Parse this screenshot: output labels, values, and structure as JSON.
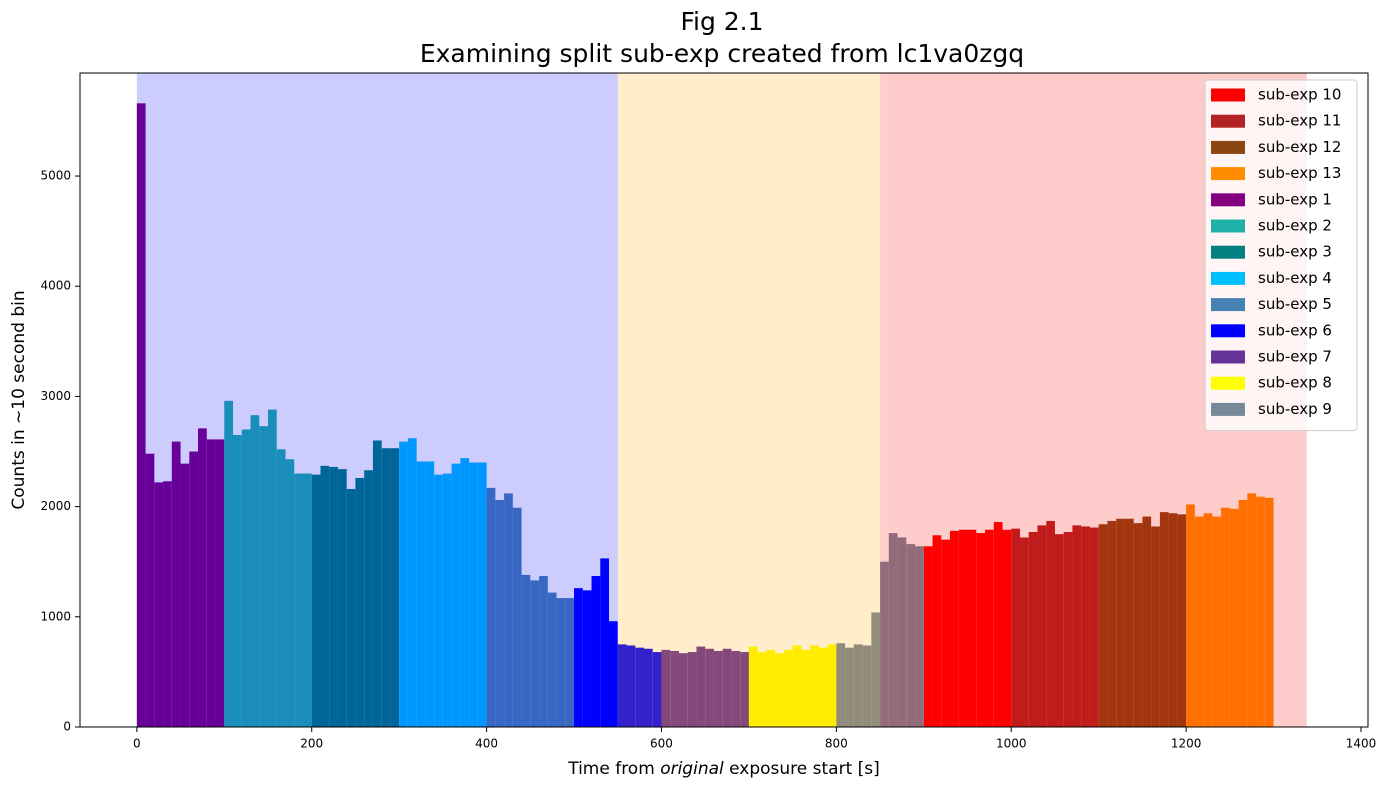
{
  "chart_data": {
    "type": "histogram",
    "title": "Fig 2.1",
    "subtitle": "Examining split sub-exp created from lc1va0zgq",
    "xlabel": [
      "Time from",
      "original",
      "exposure start [s]"
    ],
    "ylabel": "Counts in  ~10 second bin",
    "xlim": [
      -65,
      1408
    ],
    "ylim": [
      0,
      5935
    ],
    "xticks": [
      0,
      200,
      400,
      600,
      800,
      1000,
      1200,
      1400
    ],
    "yticks": [
      0,
      1000,
      2000,
      3000,
      4000,
      5000
    ],
    "legend": "upper right",
    "shaded_regions": [
      {
        "xlim": [
          0,
          550
        ],
        "color": "#0000ff"
      },
      {
        "xlim": [
          550,
          850
        ],
        "color": "#ffa500"
      },
      {
        "xlim": [
          850,
          1338
        ],
        "color": "#ff0000"
      }
    ],
    "series": [
      {
        "name": "sub-exp 10",
        "color": "#ff0000",
        "bins": [
          900,
          910,
          920,
          930,
          940,
          950,
          960,
          970,
          980,
          990,
          1000
        ],
        "values": [
          1640,
          1740,
          1700,
          1780,
          1790,
          1790,
          1760,
          1790,
          1860,
          1790
        ]
      },
      {
        "name": "sub-exp 11",
        "color": "#b22222",
        "bins": [
          1000,
          1010,
          1020,
          1030,
          1040,
          1050,
          1060,
          1070,
          1080,
          1090,
          1100
        ],
        "values": [
          1800,
          1720,
          1770,
          1830,
          1870,
          1750,
          1770,
          1830,
          1820,
          1810
        ]
      },
      {
        "name": "sub-exp 12",
        "color": "#8b4513",
        "bins": [
          1100,
          1110,
          1120,
          1130,
          1140,
          1150,
          1160,
          1170,
          1180,
          1190,
          1200
        ],
        "values": [
          1840,
          1870,
          1890,
          1890,
          1850,
          1910,
          1820,
          1950,
          1940,
          1930
        ]
      },
      {
        "name": "sub-exp 13",
        "color": "#ff8c00",
        "bins": [
          1200,
          1210,
          1220,
          1230,
          1240,
          1250,
          1260,
          1270,
          1280,
          1290,
          1300
        ],
        "values": [
          2020,
          1910,
          1940,
          1910,
          1990,
          1980,
          2060,
          2120,
          2090,
          2080
        ]
      },
      {
        "name": "sub-exp 1",
        "color": "#800080",
        "bins": [
          0,
          10,
          20,
          30,
          40,
          50,
          60,
          70,
          80,
          90,
          100
        ],
        "values": [
          5660,
          2480,
          2220,
          2230,
          2590,
          2390,
          2500,
          2710,
          2610,
          2610
        ]
      },
      {
        "name": "sub-exp 2",
        "color": "#20b2aa",
        "bins": [
          100,
          110,
          120,
          130,
          140,
          150,
          160,
          170,
          180,
          190,
          200
        ],
        "values": [
          2960,
          2650,
          2700,
          2830,
          2730,
          2880,
          2520,
          2430,
          2300,
          2300
        ]
      },
      {
        "name": "sub-exp 3",
        "color": "#008080",
        "bins": [
          200,
          210,
          220,
          230,
          240,
          250,
          260,
          270,
          280,
          290,
          300
        ],
        "values": [
          2290,
          2370,
          2360,
          2340,
          2160,
          2260,
          2330,
          2600,
          2530,
          2530
        ]
      },
      {
        "name": "sub-exp 4",
        "color": "#00bfff",
        "bins": [
          300,
          310,
          320,
          330,
          340,
          350,
          360,
          370,
          380,
          390,
          400
        ],
        "values": [
          2590,
          2620,
          2410,
          2410,
          2290,
          2300,
          2390,
          2440,
          2400,
          2400
        ]
      },
      {
        "name": "sub-exp 5",
        "color": "#4682b4",
        "bins": [
          400,
          410,
          420,
          430,
          440,
          450,
          460,
          470,
          480,
          490,
          500
        ],
        "values": [
          2170,
          2060,
          2120,
          1990,
          1380,
          1330,
          1370,
          1220,
          1170,
          1170
        ]
      },
      {
        "name": "sub-exp 6",
        "color": "#0000ff",
        "bins": [
          500,
          510,
          520,
          530,
          540,
          550,
          560,
          570,
          580,
          590,
          600
        ],
        "values": [
          1260,
          1240,
          1370,
          1530,
          960,
          750,
          740,
          720,
          710,
          680
        ]
      },
      {
        "name": "sub-exp 7",
        "color": "#663399",
        "bins": [
          600,
          610,
          620,
          630,
          640,
          650,
          660,
          670,
          680,
          690,
          700
        ],
        "values": [
          700,
          690,
          670,
          680,
          730,
          710,
          690,
          710,
          690,
          680
        ]
      },
      {
        "name": "sub-exp 8",
        "color": "#ffff00",
        "bins": [
          700,
          710,
          720,
          730,
          740,
          750,
          760,
          770,
          780,
          790,
          800
        ],
        "values": [
          730,
          680,
          700,
          670,
          700,
          740,
          700,
          740,
          720,
          750
        ]
      },
      {
        "name": "sub-exp 9",
        "color": "#778899",
        "bins": [
          800,
          810,
          820,
          830,
          840,
          850,
          860,
          870,
          880,
          890,
          900
        ],
        "values": [
          760,
          720,
          750,
          740,
          1040,
          1500,
          1760,
          1720,
          1660,
          1640
        ]
      }
    ]
  }
}
